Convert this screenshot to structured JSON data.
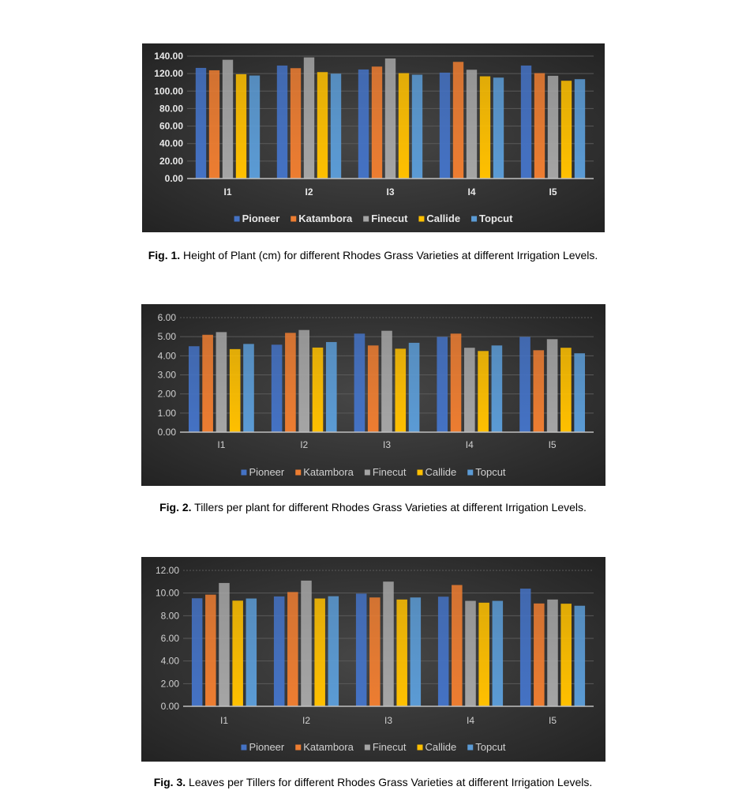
{
  "series_colors": {
    "Pioneer": "#4472C4",
    "Katambora": "#ED7D31",
    "Finecut": "#A5A5A5",
    "Callide": "#FFC000",
    "Topcut": "#5B9BD5"
  },
  "chart_data": [
    {
      "type": "bar",
      "title": "",
      "categories": [
        "I1",
        "I2",
        "I3",
        "I4",
        "I5"
      ],
      "ylim": [
        0,
        140
      ],
      "yticks": [
        "0.00",
        "20.00",
        "40.00",
        "60.00",
        "80.00",
        "100.00",
        "120.00",
        "140.00"
      ],
      "legend_position": "bottom",
      "grid": true,
      "series": [
        {
          "name": "Pioneer",
          "values": [
            126.5,
            129.2,
            124.7,
            121.1,
            129.2
          ]
        },
        {
          "name": "Katambora",
          "values": [
            123.8,
            126.2,
            128.0,
            133.4,
            120.5
          ]
        },
        {
          "name": "Finecut",
          "values": [
            135.8,
            138.5,
            137.3,
            124.4,
            117.5
          ]
        },
        {
          "name": "Callide",
          "values": [
            119.3,
            121.7,
            120.5,
            116.9,
            111.8
          ]
        },
        {
          "name": "Topcut",
          "values": [
            117.8,
            119.9,
            118.7,
            115.4,
            113.6
          ]
        }
      ]
    },
    {
      "type": "bar",
      "title": "",
      "categories": [
        "I1",
        "I2",
        "I3",
        "I4",
        "I5"
      ],
      "ylim": [
        0,
        6
      ],
      "yticks": [
        "0.00",
        "1.00",
        "2.00",
        "3.00",
        "4.00",
        "5.00",
        "6.00"
      ],
      "legend_position": "bottom",
      "grid": true,
      "series": [
        {
          "name": "Pioneer",
          "values": [
            4.5,
            4.58,
            5.16,
            4.99,
            4.99
          ]
        },
        {
          "name": "Katambora",
          "values": [
            5.1,
            5.2,
            4.54,
            5.16,
            4.29
          ]
        },
        {
          "name": "Finecut",
          "values": [
            5.24,
            5.35,
            5.31,
            4.42,
            4.87
          ]
        },
        {
          "name": "Callide",
          "values": [
            4.35,
            4.43,
            4.37,
            4.25,
            4.42
          ]
        },
        {
          "name": "Topcut",
          "values": [
            4.62,
            4.72,
            4.68,
            4.54,
            4.13
          ]
        }
      ]
    },
    {
      "type": "bar",
      "title": "",
      "categories": [
        "I1",
        "I2",
        "I3",
        "I4",
        "I5"
      ],
      "ylim": [
        0,
        12
      ],
      "yticks": [
        "0.00",
        "2.00",
        "4.00",
        "6.00",
        "8.00",
        "10.00",
        "12.00"
      ],
      "legend_position": "bottom",
      "grid": true,
      "series": [
        {
          "name": "Pioneer",
          "values": [
            9.54,
            9.7,
            9.95,
            9.68,
            10.39
          ]
        },
        {
          "name": "Katambora",
          "values": [
            9.86,
            10.09,
            9.61,
            10.71,
            9.08
          ]
        },
        {
          "name": "Finecut",
          "values": [
            10.89,
            11.1,
            11.01,
            9.31,
            9.43
          ]
        },
        {
          "name": "Callide",
          "values": [
            9.33,
            9.52,
            9.43,
            9.15,
            9.06
          ]
        },
        {
          "name": "Topcut",
          "values": [
            9.52,
            9.72,
            9.61,
            9.31,
            8.88
          ]
        }
      ]
    }
  ],
  "captions": [
    {
      "label": "Fig. 1.",
      "text": " Height of Plant (cm) for different Rhodes Grass Varieties at different Irrigation Levels."
    },
    {
      "label": "Fig. 2.",
      "text": " Tillers per plant for different Rhodes Grass Varieties at different Irrigation Levels."
    },
    {
      "label": "Fig. 3.",
      "text": " Leaves per Tillers for different Rhodes Grass Varieties at different Irrigation Levels."
    }
  ]
}
